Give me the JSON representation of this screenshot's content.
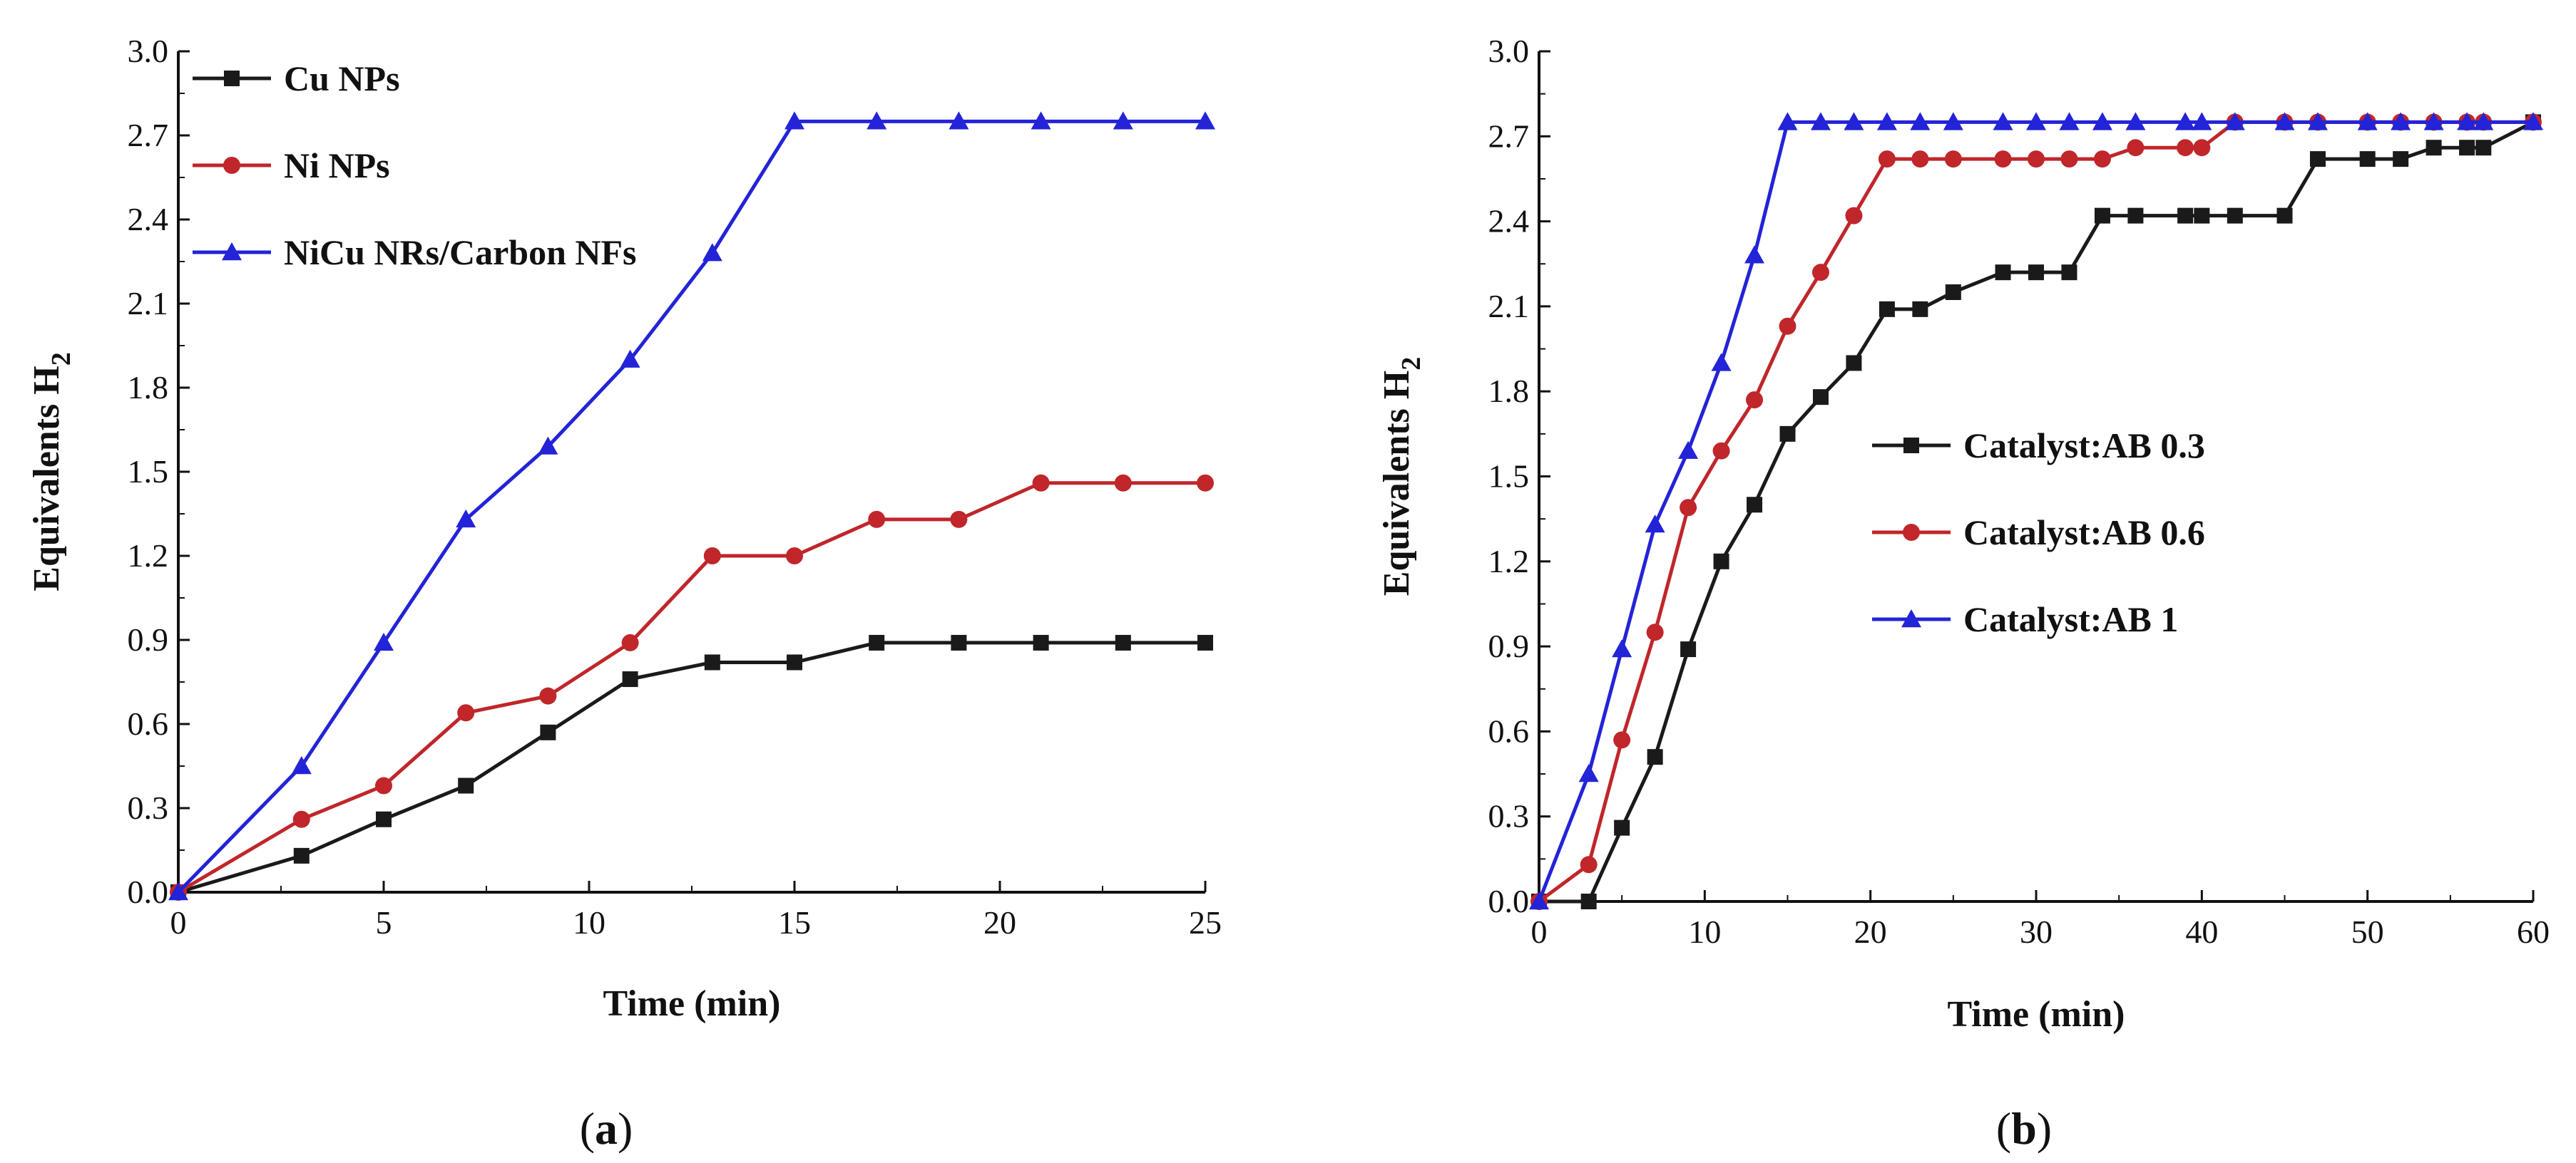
{
  "chart_data": [
    {
      "type": "line",
      "caption": "a",
      "xlabel": "Time (min)",
      "ylabel": "Equivalents H",
      "ylabel_sub": "2",
      "xlim": [
        0,
        25
      ],
      "ylim": [
        0,
        3.0
      ],
      "xticks": [
        "0",
        "5",
        "10",
        "15",
        "20",
        "25"
      ],
      "yticks": [
        "0.0",
        "0.3",
        "0.6",
        "0.9",
        "1.2",
        "1.5",
        "1.8",
        "2.1",
        "2.4",
        "2.7",
        "3.0"
      ],
      "legend_position": "top-left",
      "series": [
        {
          "name": "Cu NPs",
          "color": "#1a1a1a",
          "marker": "square",
          "x": [
            0,
            3,
            5,
            7,
            9,
            11,
            13,
            15,
            17,
            19,
            21,
            23,
            25
          ],
          "y": [
            0.0,
            0.13,
            0.26,
            0.38,
            0.57,
            0.76,
            0.82,
            0.82,
            0.89,
            0.89,
            0.89,
            0.89,
            0.89
          ]
        },
        {
          "name": "Ni NPs",
          "color": "#c0262a",
          "marker": "circle",
          "x": [
            0,
            3,
            5,
            7,
            9,
            11,
            13,
            15,
            17,
            19,
            21,
            23,
            25
          ],
          "y": [
            0.0,
            0.26,
            0.38,
            0.64,
            0.7,
            0.89,
            1.2,
            1.2,
            1.33,
            1.33,
            1.46,
            1.46,
            1.46
          ]
        },
        {
          "name": "NiCu NRs/Carbon NFs",
          "color": "#2323d8",
          "marker": "triangle",
          "x": [
            0,
            3,
            5,
            7,
            9,
            11,
            13,
            15,
            17,
            19,
            21,
            23,
            25
          ],
          "y": [
            0.0,
            0.45,
            0.89,
            1.33,
            1.59,
            1.9,
            2.28,
            2.75,
            2.75,
            2.75,
            2.75,
            2.75,
            2.75
          ]
        }
      ]
    },
    {
      "type": "line",
      "caption": "b",
      "xlabel": "Time (min)",
      "ylabel": "Equivalents H",
      "ylabel_sub": "2",
      "xlim": [
        0,
        60
      ],
      "ylim": [
        0,
        3.0
      ],
      "xticks": [
        "0",
        "10",
        "20",
        "30",
        "40",
        "50",
        "60"
      ],
      "yticks": [
        "0.0",
        "0.3",
        "0.6",
        "0.9",
        "1.2",
        "1.5",
        "1.8",
        "2.1",
        "2.4",
        "2.7",
        "3.0"
      ],
      "legend_position": "center-right",
      "series": [
        {
          "name": "Catalyst:AB 0.3",
          "color": "#1a1a1a",
          "marker": "square",
          "x": [
            0,
            3,
            5,
            7,
            9,
            11,
            13,
            15,
            17,
            19,
            21,
            23,
            25,
            28,
            30,
            32,
            34,
            36,
            39,
            40,
            42,
            45,
            47,
            50,
            52,
            54,
            56,
            57,
            60
          ],
          "y": [
            0.0,
            0.0,
            0.26,
            0.51,
            0.89,
            1.2,
            1.4,
            1.65,
            1.78,
            1.9,
            2.09,
            2.09,
            2.15,
            2.22,
            2.22,
            2.22,
            2.42,
            2.42,
            2.42,
            2.42,
            2.42,
            2.42,
            2.62,
            2.62,
            2.62,
            2.66,
            2.66,
            2.66,
            2.75
          ]
        },
        {
          "name": "Catalyst:AB 0.6",
          "color": "#c0262a",
          "marker": "circle",
          "x": [
            0,
            3,
            5,
            7,
            9,
            11,
            13,
            15,
            17,
            19,
            21,
            23,
            25,
            28,
            30,
            32,
            34,
            36,
            39,
            40,
            42,
            45,
            47,
            50,
            52,
            54,
            56,
            57,
            60
          ],
          "y": [
            0.0,
            0.13,
            0.57,
            0.95,
            1.39,
            1.59,
            1.77,
            2.03,
            2.22,
            2.42,
            2.62,
            2.62,
            2.62,
            2.62,
            2.62,
            2.62,
            2.62,
            2.66,
            2.66,
            2.66,
            2.75,
            2.75,
            2.75,
            2.75,
            2.75,
            2.75,
            2.75,
            2.75,
            2.75
          ]
        },
        {
          "name": "Catalyst:AB 1",
          "color": "#2323d8",
          "marker": "triangle",
          "x": [
            0,
            3,
            5,
            7,
            9,
            11,
            13,
            15,
            17,
            19,
            21,
            23,
            25,
            28,
            30,
            32,
            34,
            36,
            39,
            40,
            42,
            45,
            47,
            50,
            52,
            54,
            56,
            57,
            60
          ],
          "y": [
            0.0,
            0.45,
            0.89,
            1.33,
            1.59,
            1.9,
            2.28,
            2.75,
            2.75,
            2.75,
            2.75,
            2.75,
            2.75,
            2.75,
            2.75,
            2.75,
            2.75,
            2.75,
            2.75,
            2.75,
            2.75,
            2.75,
            2.75,
            2.75,
            2.75,
            2.75,
            2.75,
            2.75,
            2.75
          ]
        }
      ]
    }
  ]
}
